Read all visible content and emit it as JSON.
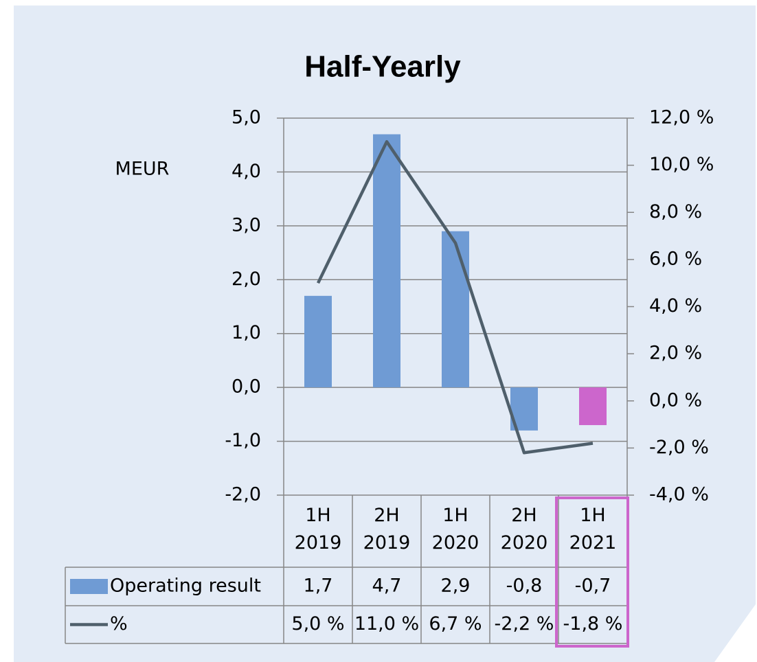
{
  "chart_data": {
    "type": "bar",
    "title": "Half-Yearly",
    "ylabel": "MEUR",
    "categories": [
      "1H 2019",
      "2H 2019",
      "1H 2020",
      "2H 2020",
      "1H 2021"
    ],
    "series": [
      {
        "name": "Operating result",
        "type": "bar",
        "color": "#6f9bd4",
        "colors": [
          "#6f9bd4",
          "#6f9bd4",
          "#6f9bd4",
          "#6f9bd4",
          "#cc66cc"
        ],
        "values": [
          1.7,
          4.7,
          2.9,
          -0.8,
          -0.7
        ],
        "value_labels": [
          "1,7",
          "4,7",
          "2,9",
          "-0,8",
          "-0,7"
        ]
      },
      {
        "name": "%",
        "type": "line",
        "axis": "y2",
        "color": "#4f5f6b",
        "values": [
          5.0,
          11.0,
          6.7,
          -2.2,
          -1.8
        ],
        "value_labels": [
          "5,0 %",
          "11,0 %",
          "6,7 %",
          "-2,2 %",
          "-1,8 %"
        ]
      }
    ],
    "ylim": [
      -2,
      5
    ],
    "yticks": [
      {
        "value": -2,
        "label": "-2,0"
      },
      {
        "value": -1,
        "label": "-1,0"
      },
      {
        "value": 0,
        "label": "0,0"
      },
      {
        "value": 1,
        "label": "1,0"
      },
      {
        "value": 2,
        "label": "2,0"
      },
      {
        "value": 3,
        "label": "3,0"
      },
      {
        "value": 4,
        "label": "4,0"
      },
      {
        "value": 5,
        "label": "5,0"
      }
    ],
    "y2lim": [
      -4,
      12
    ],
    "y2ticks": [
      {
        "value": -4,
        "label": "-4,0 %"
      },
      {
        "value": -2,
        "label": "-2,0 %"
      },
      {
        "value": 0,
        "label": "0,0 %"
      },
      {
        "value": 2,
        "label": "2,0 %"
      },
      {
        "value": 4,
        "label": "4,0 %"
      },
      {
        "value": 6,
        "label": "6,0 %"
      },
      {
        "value": 8,
        "label": "8,0 %"
      },
      {
        "value": 10,
        "label": "10,0 %"
      },
      {
        "value": 12,
        "label": "12,0 %"
      }
    ],
    "grid": true
  }
}
